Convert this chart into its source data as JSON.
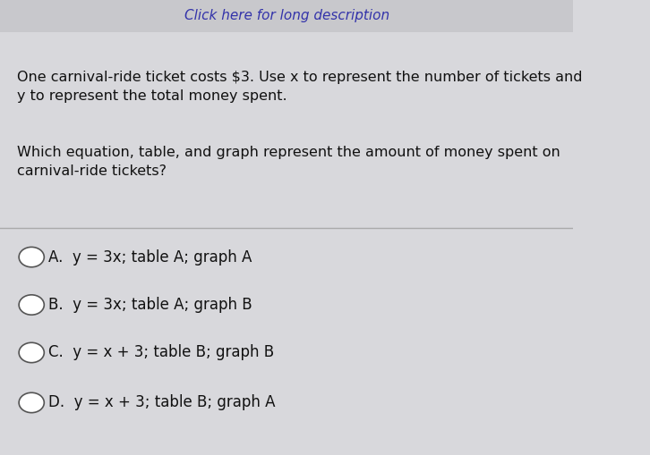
{
  "background_color": "#d8d8dc",
  "top_bar_color": "#c8c8cc",
  "link_text": "Click here for long description",
  "link_color": "#3333aa",
  "paragraph1": "One carnival-ride ticket costs $3. Use x to represent the number of tickets and\ny to represent the total money spent.",
  "paragraph2": "Which equation, table, and graph represent the amount of money spent on\ncarnival-ride tickets?",
  "divider_color": "#aaaaaa",
  "choices": [
    "A.  y = 3x; table A; graph A",
    "B.  y = 3x; table A; graph B",
    "C.  y = x + 3; table B; graph B",
    "D.  y = x + 3; table B; graph A"
  ],
  "choice_labels": [
    "A",
    "B",
    "C",
    "D"
  ],
  "circle_color": "#ffffff",
  "circle_edge_color": "#555555",
  "text_color": "#111111",
  "para_fontsize": 11.5,
  "choice_fontsize": 12,
  "link_fontsize": 11
}
